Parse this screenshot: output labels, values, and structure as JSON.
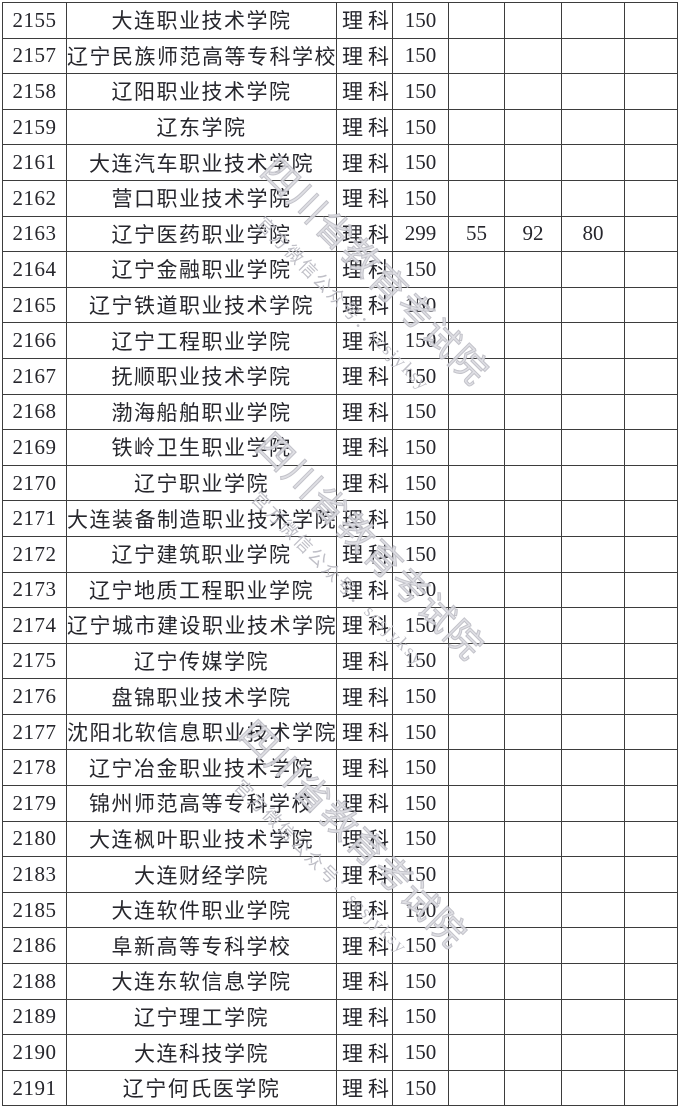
{
  "watermark": {
    "title": "四川省教育考试院",
    "subtitle": "官方微信公众号：scsjyksy"
  },
  "colors": {
    "table_line": "#3d3d3d",
    "table_text": "#26262c",
    "watermark_gray": "#bcbcc4"
  },
  "table": {
    "rows": [
      {
        "code": "2155",
        "name": "大连职业技术学院",
        "category": "理科",
        "score": "150",
        "v1": "",
        "v2": "",
        "v3": "",
        "v4": ""
      },
      {
        "code": "2157",
        "name": "辽宁民族师范高等专科学校",
        "category": "理科",
        "score": "150",
        "v1": "",
        "v2": "",
        "v3": "",
        "v4": ""
      },
      {
        "code": "2158",
        "name": "辽阳职业技术学院",
        "category": "理科",
        "score": "150",
        "v1": "",
        "v2": "",
        "v3": "",
        "v4": ""
      },
      {
        "code": "2159",
        "name": "辽东学院",
        "category": "理科",
        "score": "150",
        "v1": "",
        "v2": "",
        "v3": "",
        "v4": ""
      },
      {
        "code": "2161",
        "name": "大连汽车职业技术学院",
        "category": "理科",
        "score": "150",
        "v1": "",
        "v2": "",
        "v3": "",
        "v4": ""
      },
      {
        "code": "2162",
        "name": "营口职业技术学院",
        "category": "理科",
        "score": "150",
        "v1": "",
        "v2": "",
        "v3": "",
        "v4": ""
      },
      {
        "code": "2163",
        "name": "辽宁医药职业学院",
        "category": "理科",
        "score": "299",
        "v1": "55",
        "v2": "92",
        "v3": "80",
        "v4": ""
      },
      {
        "code": "2164",
        "name": "辽宁金融职业学院",
        "category": "理科",
        "score": "150",
        "v1": "",
        "v2": "",
        "v3": "",
        "v4": ""
      },
      {
        "code": "2165",
        "name": "辽宁铁道职业技术学院",
        "category": "理科",
        "score": "150",
        "v1": "",
        "v2": "",
        "v3": "",
        "v4": ""
      },
      {
        "code": "2166",
        "name": "辽宁工程职业学院",
        "category": "理科",
        "score": "150",
        "v1": "",
        "v2": "",
        "v3": "",
        "v4": ""
      },
      {
        "code": "2167",
        "name": "抚顺职业技术学院",
        "category": "理科",
        "score": "150",
        "v1": "",
        "v2": "",
        "v3": "",
        "v4": ""
      },
      {
        "code": "2168",
        "name": "渤海船舶职业学院",
        "category": "理科",
        "score": "150",
        "v1": "",
        "v2": "",
        "v3": "",
        "v4": ""
      },
      {
        "code": "2169",
        "name": "铁岭卫生职业学院",
        "category": "理科",
        "score": "150",
        "v1": "",
        "v2": "",
        "v3": "",
        "v4": ""
      },
      {
        "code": "2170",
        "name": "辽宁职业学院",
        "category": "理科",
        "score": "150",
        "v1": "",
        "v2": "",
        "v3": "",
        "v4": ""
      },
      {
        "code": "2171",
        "name": "大连装备制造职业技术学院",
        "category": "理科",
        "score": "150",
        "v1": "",
        "v2": "",
        "v3": "",
        "v4": ""
      },
      {
        "code": "2172",
        "name": "辽宁建筑职业学院",
        "category": "理科",
        "score": "150",
        "v1": "",
        "v2": "",
        "v3": "",
        "v4": ""
      },
      {
        "code": "2173",
        "name": "辽宁地质工程职业学院",
        "category": "理科",
        "score": "150",
        "v1": "",
        "v2": "",
        "v3": "",
        "v4": ""
      },
      {
        "code": "2174",
        "name": "辽宁城市建设职业技术学院",
        "category": "理科",
        "score": "150",
        "v1": "",
        "v2": "",
        "v3": "",
        "v4": ""
      },
      {
        "code": "2175",
        "name": "辽宁传媒学院",
        "category": "理科",
        "score": "150",
        "v1": "",
        "v2": "",
        "v3": "",
        "v4": ""
      },
      {
        "code": "2176",
        "name": "盘锦职业技术学院",
        "category": "理科",
        "score": "150",
        "v1": "",
        "v2": "",
        "v3": "",
        "v4": ""
      },
      {
        "code": "2177",
        "name": "沈阳北软信息职业技术学院",
        "category": "理科",
        "score": "150",
        "v1": "",
        "v2": "",
        "v3": "",
        "v4": ""
      },
      {
        "code": "2178",
        "name": "辽宁冶金职业技术学院",
        "category": "理科",
        "score": "150",
        "v1": "",
        "v2": "",
        "v3": "",
        "v4": ""
      },
      {
        "code": "2179",
        "name": "锦州师范高等专科学校",
        "category": "理科",
        "score": "150",
        "v1": "",
        "v2": "",
        "v3": "",
        "v4": ""
      },
      {
        "code": "2180",
        "name": "大连枫叶职业技术学院",
        "category": "理科",
        "score": "150",
        "v1": "",
        "v2": "",
        "v3": "",
        "v4": ""
      },
      {
        "code": "2183",
        "name": "大连财经学院",
        "category": "理科",
        "score": "150",
        "v1": "",
        "v2": "",
        "v3": "",
        "v4": ""
      },
      {
        "code": "2185",
        "name": "大连软件职业学院",
        "category": "理科",
        "score": "150",
        "v1": "",
        "v2": "",
        "v3": "",
        "v4": ""
      },
      {
        "code": "2186",
        "name": "阜新高等专科学校",
        "category": "理科",
        "score": "150",
        "v1": "",
        "v2": "",
        "v3": "",
        "v4": ""
      },
      {
        "code": "2188",
        "name": "大连东软信息学院",
        "category": "理科",
        "score": "150",
        "v1": "",
        "v2": "",
        "v3": "",
        "v4": ""
      },
      {
        "code": "2189",
        "name": "辽宁理工学院",
        "category": "理科",
        "score": "150",
        "v1": "",
        "v2": "",
        "v3": "",
        "v4": ""
      },
      {
        "code": "2190",
        "name": "大连科技学院",
        "category": "理科",
        "score": "150",
        "v1": "",
        "v2": "",
        "v3": "",
        "v4": ""
      },
      {
        "code": "2191",
        "name": "辽宁何氏医学院",
        "category": "理科",
        "score": "150",
        "v1": "",
        "v2": "",
        "v3": "",
        "v4": ""
      }
    ]
  }
}
